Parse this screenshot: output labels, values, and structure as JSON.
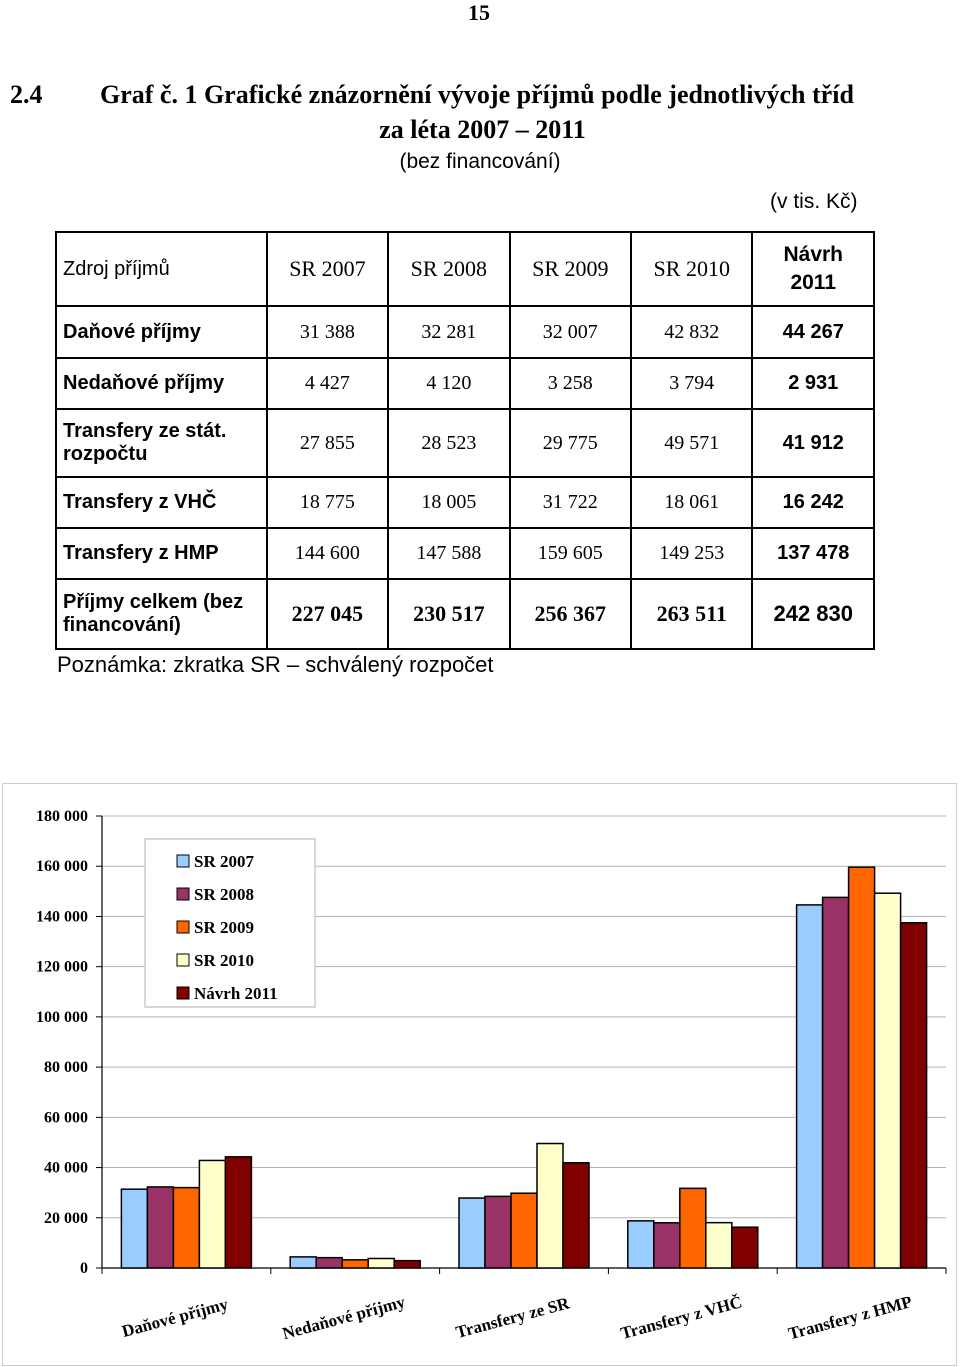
{
  "page_number": "15",
  "heading": {
    "number": "2.4",
    "title_line1": "Graf č. 1 Grafické znázornění vývoje příjmů podle jednotlivých tříd",
    "title_line2": "za léta 2007 – 2011",
    "subtitle": "(bez financování)"
  },
  "unit_note": "(v tis. Kč)",
  "table": {
    "headers": [
      "Zdroj příjmů",
      "SR 2007",
      "SR 2008",
      "SR 2009",
      "SR 2010",
      "Návrh 2011"
    ],
    "rows": [
      {
        "label": "Daňové příjmy",
        "values": [
          "31 388",
          "32 281",
          "32 007",
          "42 832",
          "44 267"
        ]
      },
      {
        "label": "Nedaňové příjmy",
        "values": [
          "4 427",
          "4 120",
          "3 258",
          "3 794",
          "2 931"
        ]
      },
      {
        "label": "Transfery ze stát. rozpočtu",
        "values": [
          "27 855",
          "28 523",
          "29 775",
          "49 571",
          "41 912"
        ]
      },
      {
        "label": "Transfery z VHČ",
        "values": [
          "18 775",
          "18 005",
          "31 722",
          "18 061",
          "16 242"
        ]
      },
      {
        "label": "Transfery z HMP",
        "values": [
          "144 600",
          "147 588",
          "159 605",
          "149 253",
          "137 478"
        ]
      },
      {
        "label": "Příjmy celkem (bez financování)",
        "values": [
          "227 045",
          "230 517",
          "256 367",
          "263 511",
          "242 830"
        ]
      }
    ]
  },
  "footnote": "Poznámka:  zkratka SR – schválený rozpočet",
  "chart_data": {
    "type": "bar",
    "categories": [
      "Daňové příjmy",
      "Nedaňové příjmy",
      "Transfery ze SR",
      "Transfery z VHČ",
      "Transfery z HMP"
    ],
    "series": [
      {
        "name": "SR 2007",
        "color": "#99CCFF",
        "values": [
          31388,
          4427,
          27855,
          18775,
          144600
        ]
      },
      {
        "name": "SR 2008",
        "color": "#993366",
        "values": [
          32281,
          4120,
          28523,
          18005,
          147588
        ]
      },
      {
        "name": "SR 2009",
        "color": "#FF6600",
        "values": [
          32007,
          3258,
          29775,
          31722,
          159605
        ]
      },
      {
        "name": "SR 2010",
        "color": "#FFFFCC",
        "values": [
          42832,
          3794,
          49571,
          18061,
          149253
        ]
      },
      {
        "name": "Návrh 2011",
        "color": "#800000",
        "values": [
          44267,
          2931,
          41912,
          16242,
          137478
        ]
      }
    ],
    "ylim": [
      0,
      180000
    ],
    "yticks": [
      "0",
      "20 000",
      "40 000",
      "60 000",
      "80 000",
      "100 000",
      "120 000",
      "140 000",
      "160 000",
      "180 000"
    ],
    "grid": true,
    "legend_position": "top-left"
  }
}
